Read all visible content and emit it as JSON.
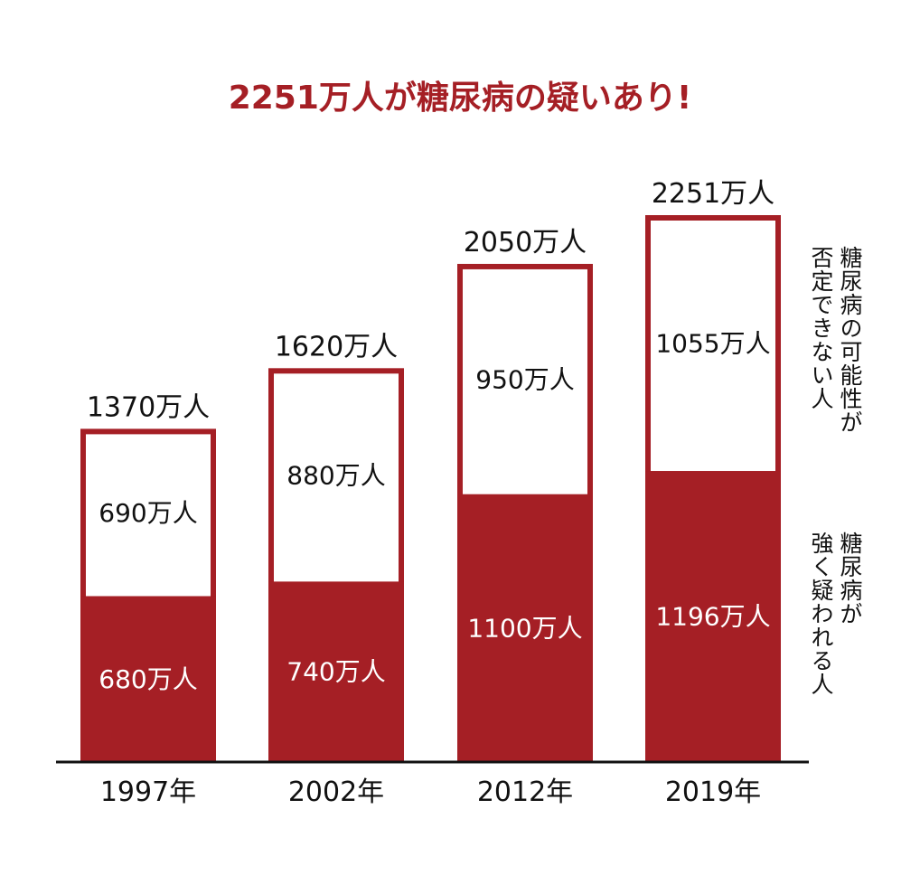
{
  "chart_data": {
    "type": "bar",
    "title": "2251万人が糖尿病の疑いあり!",
    "categories": [
      "1997年",
      "2002年",
      "2012年",
      "2019年"
    ],
    "series": [
      {
        "name": "糖尿病が\n強く疑われる人",
        "values": [
          680,
          740,
          1100,
          1196
        ],
        "labels": [
          "680万人",
          "740万人",
          "1100万人",
          "1196万人"
        ]
      },
      {
        "name": "糖尿病の可能性が\n否定できない人",
        "values": [
          690,
          880,
          950,
          1055
        ],
        "labels": [
          "690万人",
          "880万人",
          "950万人",
          "1055万人"
        ]
      }
    ],
    "totals": [
      1370,
      1620,
      2050,
      2251
    ],
    "total_labels": [
      "1370万人",
      "1620万人",
      "2050万人",
      "2251万人"
    ],
    "ylim": [
      0,
      2251
    ],
    "grid": false,
    "legend": "right"
  },
  "colors": {
    "accent": "#a51f25",
    "text": "#111111",
    "filled_label": "#ffffff"
  }
}
